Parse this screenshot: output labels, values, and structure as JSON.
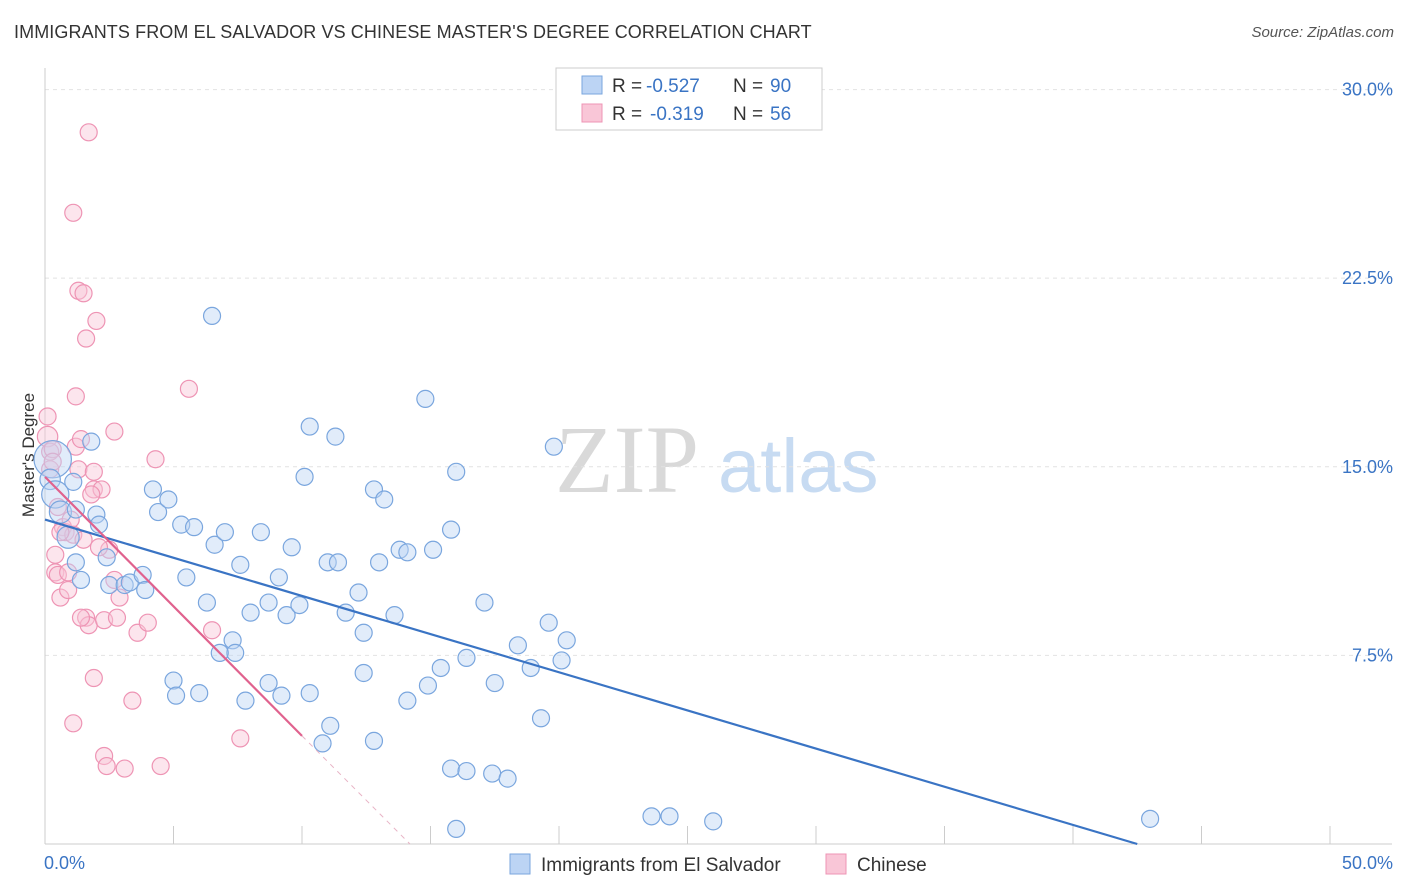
{
  "header": {
    "title": "IMMIGRANTS FROM EL SALVADOR VS CHINESE MASTER'S DEGREE CORRELATION CHART",
    "source": "Source: ZipAtlas.com"
  },
  "watermark": {
    "zip": "ZIP",
    "atlas": "atlas"
  },
  "colors": {
    "blue": "#3a74c4",
    "blue_fill": "#bcd4f4",
    "blue_stroke": "#7aa6de",
    "pink": "#e0628e",
    "pink_fill": "#f9c6d7",
    "pink_stroke": "#ee94b4",
    "grid": "#e2e2e2",
    "axis": "#cccccc"
  },
  "legend": {
    "rows": [
      {
        "r_label": "R =",
        "r_value": "-0.527",
        "n_label": "N =",
        "n_value": "90"
      },
      {
        "r_label": "R =",
        "r_value": "-0.319",
        "n_label": "N =",
        "n_value": "56"
      }
    ]
  },
  "bottom_legend": {
    "series1": "Immigrants from El Salvador",
    "series2": "Chinese"
  },
  "chart_data": {
    "type": "scatter",
    "title": "IMMIGRANTS FROM EL SALVADOR VS CHINESE MASTER'S DEGREE CORRELATION CHART",
    "xlabel": "",
    "ylabel": "Master's Degree",
    "xlim": [
      0,
      50
    ],
    "ylim": [
      0,
      30.5
    ],
    "x_tick_labels": [
      "0.0%",
      "50.0%"
    ],
    "y_ticks": [
      7.5,
      15.0,
      22.5,
      30.0
    ],
    "y_tick_labels": [
      "7.5%",
      "15.0%",
      "22.5%",
      "30.0%"
    ],
    "grid": true,
    "legend_position": "top-center",
    "series": [
      {
        "name": "Immigrants from El Salvador",
        "r": -0.527,
        "n": 90,
        "trend": {
          "x": [
            0,
            42.5
          ],
          "y": [
            12.9,
            0
          ]
        },
        "points": [
          [
            0.3,
            15.3,
            2.2
          ],
          [
            0.2,
            14.5,
            1.2
          ],
          [
            0.4,
            13.9,
            1.6
          ],
          [
            0.6,
            13.2,
            1.3
          ],
          [
            0.9,
            12.2,
            1.3
          ],
          [
            1.2,
            13.3,
            1
          ],
          [
            1.8,
            16.0,
            1
          ],
          [
            1.1,
            14.4,
            1
          ],
          [
            1.2,
            11.2,
            1
          ],
          [
            1.4,
            10.5,
            1
          ],
          [
            2.0,
            13.1,
            1
          ],
          [
            2.1,
            12.7,
            1
          ],
          [
            2.4,
            11.4,
            1
          ],
          [
            2.5,
            10.3,
            1
          ],
          [
            3.1,
            10.3,
            1
          ],
          [
            3.3,
            10.4,
            1
          ],
          [
            3.8,
            10.7,
            1
          ],
          [
            3.9,
            10.1,
            1
          ],
          [
            4.2,
            14.1,
            1
          ],
          [
            4.4,
            13.2,
            1
          ],
          [
            4.8,
            13.7,
            1
          ],
          [
            5.3,
            12.7,
            1
          ],
          [
            5.5,
            10.6,
            1
          ],
          [
            5.8,
            12.6,
            1
          ],
          [
            6.3,
            9.6,
            1
          ],
          [
            6.5,
            21.0,
            1
          ],
          [
            6.6,
            11.9,
            1
          ],
          [
            7.0,
            12.4,
            1
          ],
          [
            7.3,
            8.1,
            1
          ],
          [
            7.6,
            11.1,
            1
          ],
          [
            8.0,
            9.2,
            1
          ],
          [
            8.4,
            12.4,
            1
          ],
          [
            8.7,
            9.6,
            1
          ],
          [
            9.1,
            10.6,
            1
          ],
          [
            9.4,
            9.1,
            1
          ],
          [
            9.6,
            11.8,
            1
          ],
          [
            9.9,
            9.5,
            1
          ],
          [
            10.1,
            14.6,
            1
          ],
          [
            10.3,
            16.6,
            1
          ],
          [
            11.0,
            11.2,
            1
          ],
          [
            11.3,
            16.2,
            1
          ],
          [
            11.4,
            11.2,
            1
          ],
          [
            11.7,
            9.2,
            1
          ],
          [
            12.2,
            10.0,
            1
          ],
          [
            12.4,
            8.4,
            1
          ],
          [
            12.8,
            14.1,
            1
          ],
          [
            13.0,
            11.2,
            1
          ],
          [
            13.2,
            13.7,
            1
          ],
          [
            13.6,
            9.1,
            1
          ],
          [
            13.8,
            11.7,
            1
          ],
          [
            14.1,
            11.6,
            1
          ],
          [
            14.8,
            17.7,
            1
          ],
          [
            15.1,
            11.7,
            1
          ],
          [
            15.8,
            12.5,
            1
          ],
          [
            16.0,
            14.8,
            1
          ],
          [
            16.4,
            7.4,
            1
          ],
          [
            17.1,
            9.6,
            1
          ],
          [
            17.5,
            6.4,
            1
          ],
          [
            18.4,
            7.9,
            1
          ],
          [
            18.9,
            7.0,
            1
          ],
          [
            19.3,
            5.0,
            1
          ],
          [
            19.6,
            8.8,
            1
          ],
          [
            19.8,
            15.8,
            1
          ],
          [
            20.1,
            7.3,
            1
          ],
          [
            20.3,
            8.1,
            1
          ],
          [
            5.0,
            6.5,
            1
          ],
          [
            5.1,
            5.9,
            1
          ],
          [
            6.0,
            6.0,
            1
          ],
          [
            7.4,
            7.6,
            1
          ],
          [
            7.8,
            5.7,
            1
          ],
          [
            8.7,
            6.4,
            1
          ],
          [
            9.2,
            5.9,
            1
          ],
          [
            10.3,
            6.0,
            1
          ],
          [
            10.8,
            4.0,
            1
          ],
          [
            11.1,
            4.7,
            1
          ],
          [
            12.4,
            6.8,
            1
          ],
          [
            12.8,
            4.1,
            1
          ],
          [
            14.1,
            5.7,
            1
          ],
          [
            14.9,
            6.3,
            1
          ],
          [
            15.4,
            7.0,
            1
          ],
          [
            15.8,
            3.0,
            1
          ],
          [
            16.0,
            0.6,
            1
          ],
          [
            17.4,
            2.8,
            1
          ],
          [
            18.0,
            2.6,
            1
          ],
          [
            23.6,
            1.1,
            1
          ],
          [
            24.3,
            1.1,
            1
          ],
          [
            26.0,
            0.9,
            1
          ],
          [
            43.0,
            1.0,
            1
          ],
          [
            6.8,
            7.6,
            1
          ],
          [
            16.4,
            2.9,
            1
          ]
        ]
      },
      {
        "name": "Chinese",
        "r": -0.319,
        "n": 56,
        "trend": {
          "x": [
            0,
            10
          ],
          "y": [
            14.6,
            4.3
          ]
        },
        "trend_ext": {
          "x": [
            10,
            14.2
          ],
          "y": [
            4.3,
            0
          ]
        },
        "points": [
          [
            0.1,
            16.2,
            1.2
          ],
          [
            0.1,
            17.0,
            1
          ],
          [
            0.2,
            15.6,
            1
          ],
          [
            0.2,
            14.9,
            1
          ],
          [
            0.3,
            15.7,
            1
          ],
          [
            0.3,
            15.2,
            1
          ],
          [
            0.4,
            11.5,
            1
          ],
          [
            0.4,
            10.8,
            1
          ],
          [
            0.5,
            10.7,
            1
          ],
          [
            0.6,
            9.8,
            1
          ],
          [
            0.7,
            12.6,
            1
          ],
          [
            0.8,
            12.4,
            1
          ],
          [
            0.9,
            10.1,
            1
          ],
          [
            0.9,
            10.8,
            1
          ],
          [
            1.0,
            12.9,
            1
          ],
          [
            1.1,
            12.3,
            1
          ],
          [
            1.2,
            17.8,
            1
          ],
          [
            1.2,
            15.8,
            1
          ],
          [
            1.3,
            14.9,
            1
          ],
          [
            1.4,
            16.1,
            1
          ],
          [
            1.5,
            12.1,
            1
          ],
          [
            1.6,
            9.0,
            1
          ],
          [
            1.7,
            8.7,
            1
          ],
          [
            1.9,
            14.1,
            1
          ],
          [
            1.1,
            25.1,
            1
          ],
          [
            1.7,
            28.3,
            1
          ],
          [
            1.3,
            22.0,
            1
          ],
          [
            1.5,
            21.9,
            1
          ],
          [
            1.6,
            20.1,
            1
          ],
          [
            2.0,
            20.8,
            1
          ],
          [
            1.9,
            14.8,
            1
          ],
          [
            2.2,
            14.1,
            1
          ],
          [
            2.3,
            8.9,
            1
          ],
          [
            2.5,
            11.7,
            1
          ],
          [
            2.7,
            10.5,
            1
          ],
          [
            2.9,
            9.8,
            1
          ],
          [
            2.7,
            16.4,
            1
          ],
          [
            1.1,
            4.8,
            1
          ],
          [
            1.9,
            6.6,
            1
          ],
          [
            2.3,
            3.5,
            1
          ],
          [
            2.4,
            3.1,
            1
          ],
          [
            3.1,
            3.0,
            1
          ],
          [
            3.4,
            5.7,
            1
          ],
          [
            3.6,
            8.4,
            1
          ],
          [
            4.0,
            8.8,
            1
          ],
          [
            4.3,
            15.3,
            1
          ],
          [
            4.5,
            3.1,
            1
          ],
          [
            5.6,
            18.1,
            1
          ],
          [
            6.5,
            8.5,
            1
          ],
          [
            7.6,
            4.2,
            1
          ],
          [
            1.8,
            13.9,
            1
          ],
          [
            2.1,
            11.8,
            1
          ],
          [
            0.6,
            12.4,
            1
          ],
          [
            0.5,
            13.4,
            1
          ],
          [
            1.4,
            9.0,
            1
          ],
          [
            2.8,
            9.0,
            1
          ]
        ]
      }
    ]
  }
}
